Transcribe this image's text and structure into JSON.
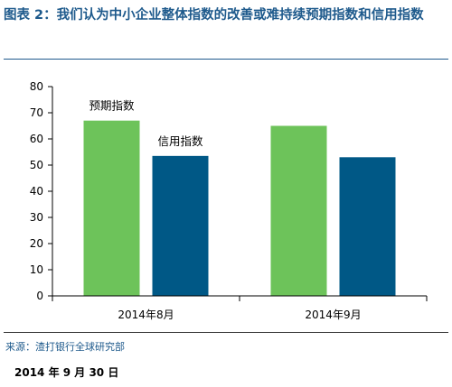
{
  "header": {
    "title": "图表 2：我们认为中小企业整体指数的改善或难持续预期指数和信用指数"
  },
  "chart_data": {
    "type": "bar",
    "categories": [
      "2014年8月",
      "2014年9月"
    ],
    "series": [
      {
        "name": "预期指数",
        "values": [
          67,
          65
        ],
        "color": "#6dc35a"
      },
      {
        "name": "信用指数",
        "values": [
          53.5,
          53
        ],
        "color": "#005886"
      }
    ],
    "title": "",
    "xlabel": "",
    "ylabel": "",
    "ylim": [
      0,
      80
    ],
    "yticks": [
      0,
      10,
      20,
      30,
      40,
      50,
      60,
      70,
      80
    ],
    "grid": false,
    "legend": "labels placed above first-group bars"
  },
  "footer": {
    "source": "来源：渣打银行全球研究部",
    "date": "2014 年 9 月 30 日"
  }
}
